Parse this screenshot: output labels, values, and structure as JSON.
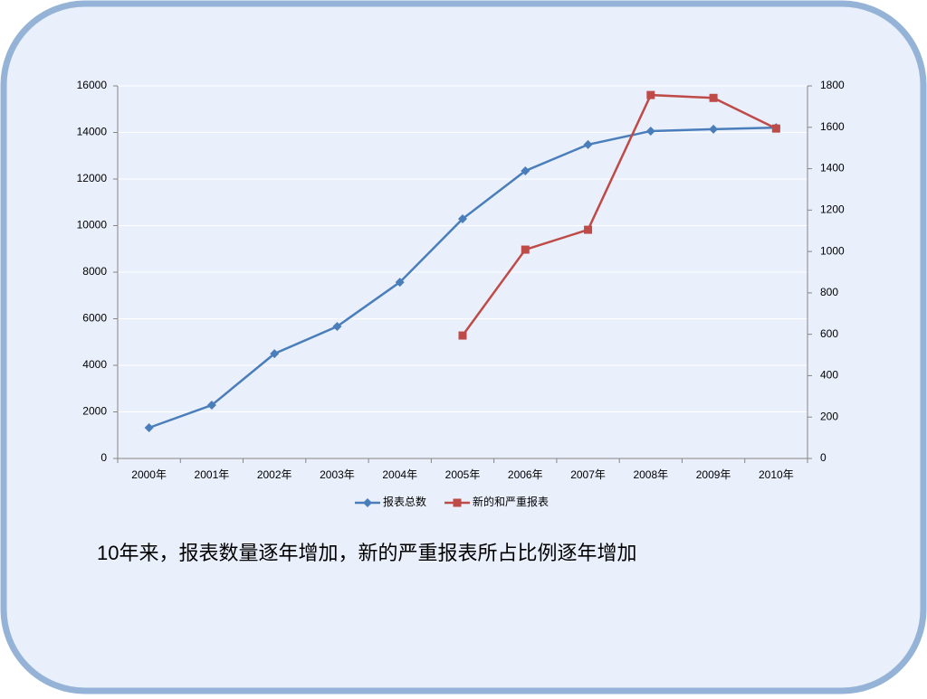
{
  "chart_data": {
    "type": "line",
    "categories": [
      "2000年",
      "2001年",
      "2002年",
      "2003年",
      "2004年",
      "2005年",
      "2006年",
      "2007年",
      "2008年",
      "2009年",
      "2010年"
    ],
    "series": [
      {
        "name": "报表总数",
        "color": "#4a7ebb",
        "marker": "diamond",
        "values": [
          1320,
          2290,
          4500,
          5670,
          7570,
          10290,
          12350,
          13480,
          14060,
          14140,
          14210
        ]
      },
      {
        "name": "新的和严重报表",
        "color": "#be4b48",
        "marker": "square",
        "axis": "y2",
        "values": [
          null,
          null,
          null,
          null,
          null,
          594,
          1009,
          1105,
          1756,
          1742,
          1594
        ]
      }
    ],
    "ylim": [
      0,
      16000
    ],
    "yticks": [
      0,
      2000,
      4000,
      6000,
      8000,
      10000,
      12000,
      14000,
      16000
    ],
    "y2lim": [
      0,
      1800
    ],
    "y2ticks": [
      0,
      200,
      400,
      600,
      800,
      1000,
      1200,
      1400,
      1600,
      1800
    ],
    "grid": true,
    "legend": "bottom",
    "annotation": "10年来，报表数量逐年增加，新的严重报表所占比例逐年增加"
  }
}
